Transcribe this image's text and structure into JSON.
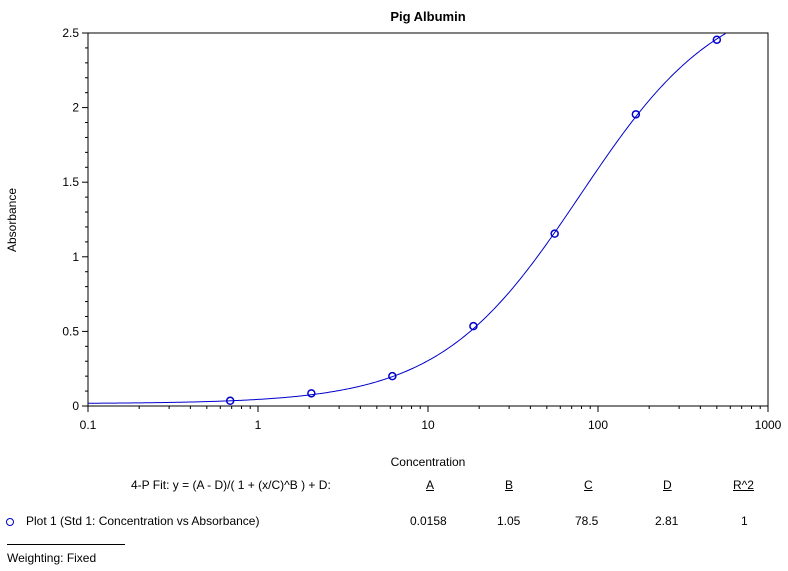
{
  "chart_data": {
    "type": "scatter",
    "title": "Pig Albumin",
    "xlabel": "Concentration",
    "ylabel": "Absorbance",
    "xscale": "log",
    "xlim": [
      0.1,
      1000
    ],
    "ylim": [
      0,
      2.5
    ],
    "x_ticks": [
      "0.1",
      "1",
      "10",
      "100",
      "1000"
    ],
    "y_ticks": [
      "0",
      "0.5",
      "1",
      "1.5",
      "2",
      "2.5"
    ],
    "grid": false,
    "series": [
      {
        "name": "Plot 1 (Std 1: Concentration vs Absorbance)",
        "color": "#0000cc",
        "x": [
          0.686,
          2.06,
          6.17,
          18.5,
          55.6,
          167,
          500
        ],
        "y": [
          0.035,
          0.085,
          0.2,
          0.535,
          1.155,
          1.955,
          2.455
        ]
      }
    ],
    "fit": {
      "equation": "4-P Fit: y = (A - D)/( 1 + (x/C)^B ) + D:",
      "headers": [
        "A",
        "B",
        "C",
        "D",
        "R^2"
      ],
      "values": [
        "0.0158",
        "1.05",
        "78.5",
        "2.81",
        "1"
      ],
      "A": 0.0158,
      "B": 1.05,
      "C": 78.5,
      "D": 2.81
    },
    "weighting": "Weighting: Fixed"
  }
}
